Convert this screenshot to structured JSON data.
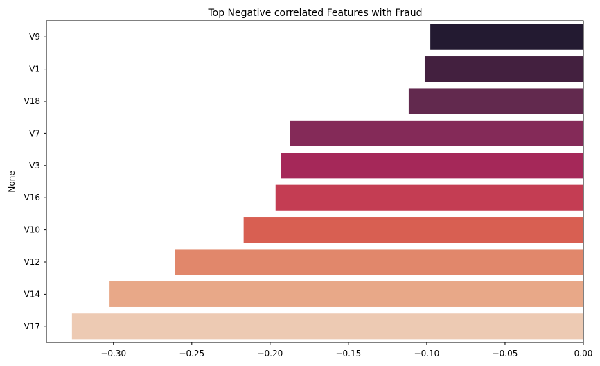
{
  "chart_data": {
    "type": "bar",
    "orientation": "horizontal",
    "title": "Top Negative correlated Features with Fraud",
    "xlabel": "",
    "ylabel": "None",
    "categories": [
      "V9",
      "V1",
      "V18",
      "V7",
      "V3",
      "V16",
      "V10",
      "V12",
      "V14",
      "V17"
    ],
    "values": [
      -0.0977,
      -0.1013,
      -0.1115,
      -0.1873,
      -0.1929,
      -0.1965,
      -0.2169,
      -0.2606,
      -0.3025,
      -0.3265
    ],
    "xlim": [
      -0.3428,
      0.0
    ],
    "xticks": [
      -0.3,
      -0.25,
      -0.2,
      -0.15,
      -0.1,
      -0.05,
      0.0
    ],
    "xtick_labels": [
      "−0.30",
      "−0.25",
      "−0.20",
      "−0.15",
      "−0.10",
      "−0.05",
      "0.00"
    ],
    "grid": false,
    "legend": "none",
    "colors": [
      "#231a31",
      "#43203f",
      "#62294e",
      "#842a58",
      "#a52859",
      "#c43d53",
      "#d85f52",
      "#e1876b",
      "#e8a888",
      "#edcab3"
    ]
  }
}
